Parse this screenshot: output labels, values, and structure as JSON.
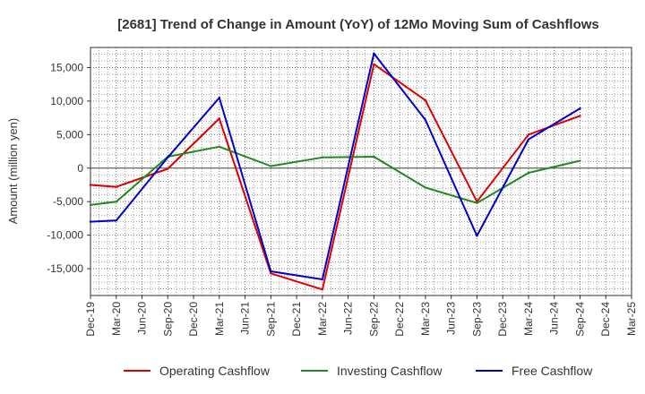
{
  "chart_data": {
    "type": "line",
    "title": "[2681]  Trend of Change in Amount (YoY) of 12Mo Moving Sum of Cashflows",
    "xlabel": "",
    "ylabel": "Amount (million yen)",
    "ylim": [
      -19000,
      18000
    ],
    "yticks": [
      -15000,
      -10000,
      -5000,
      0,
      5000,
      10000,
      15000
    ],
    "ytick_labels": [
      "-15,000",
      "-10,000",
      "-5,000",
      "0",
      "5,000",
      "10,000",
      "15,000"
    ],
    "grid": true,
    "legend_position": "bottom",
    "categories": [
      "Dec-19",
      "Mar-20",
      "Jun-20",
      "Sep-20",
      "Dec-20",
      "Mar-21",
      "Jun-21",
      "Sep-21",
      "Dec-21",
      "Mar-22",
      "Jun-22",
      "Sep-22",
      "Dec-22",
      "Mar-23",
      "Jun-23",
      "Sep-23",
      "Dec-23",
      "Mar-24",
      "Jun-24",
      "Sep-24",
      "Dec-24",
      "Mar-25"
    ],
    "series": [
      {
        "name": "Operating Cashflow",
        "color": "#dd0000",
        "points": [
          {
            "x": "Dec-19",
            "y": -2500
          },
          {
            "x": "Mar-20",
            "y": -2800
          },
          {
            "x": "Sep-20",
            "y": -100
          },
          {
            "x": "Mar-21",
            "y": 7400
          },
          {
            "x": "Sep-21",
            "y": -15700
          },
          {
            "x": "Mar-22",
            "y": -18100
          },
          {
            "x": "Sep-22",
            "y": 15500
          },
          {
            "x": "Mar-23",
            "y": 10100
          },
          {
            "x": "Sep-23",
            "y": -5000
          },
          {
            "x": "Mar-24",
            "y": 5000
          },
          {
            "x": "Sep-24",
            "y": 7800
          }
        ]
      },
      {
        "name": "Investing Cashflow",
        "color": "#228822",
        "points": [
          {
            "x": "Dec-19",
            "y": -5500
          },
          {
            "x": "Mar-20",
            "y": -5000
          },
          {
            "x": "Sep-20",
            "y": 1700
          },
          {
            "x": "Mar-21",
            "y": 3200
          },
          {
            "x": "Sep-21",
            "y": 300
          },
          {
            "x": "Mar-22",
            "y": 1600
          },
          {
            "x": "Sep-22",
            "y": 1700
          },
          {
            "x": "Mar-23",
            "y": -2900
          },
          {
            "x": "Sep-23",
            "y": -5200
          },
          {
            "x": "Mar-24",
            "y": -700
          },
          {
            "x": "Sep-24",
            "y": 1100
          }
        ]
      },
      {
        "name": "Free Cashflow",
        "color": "#0000cc",
        "points": [
          {
            "x": "Dec-19",
            "y": -8000
          },
          {
            "x": "Mar-20",
            "y": -7800
          },
          {
            "x": "Sep-20",
            "y": 1600
          },
          {
            "x": "Mar-21",
            "y": 10500
          },
          {
            "x": "Sep-21",
            "y": -15400
          },
          {
            "x": "Mar-22",
            "y": -16600
          },
          {
            "x": "Sep-22",
            "y": 17100
          },
          {
            "x": "Mar-23",
            "y": 7200
          },
          {
            "x": "Sep-23",
            "y": -10100
          },
          {
            "x": "Mar-24",
            "y": 4300
          },
          {
            "x": "Sep-24",
            "y": 8900
          }
        ]
      }
    ]
  }
}
